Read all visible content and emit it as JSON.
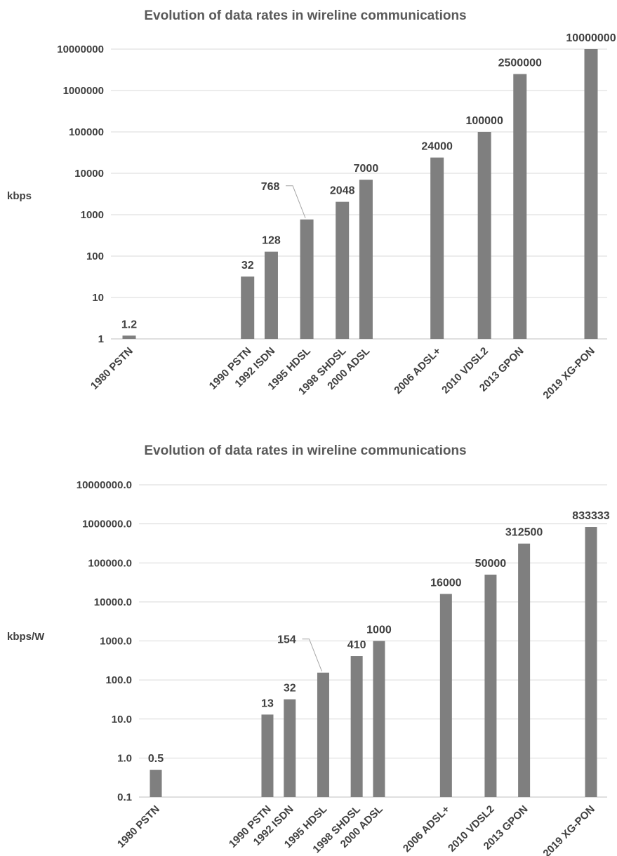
{
  "chart_data": [
    {
      "type": "bar",
      "title": "Evolution of data rates in wireline communications",
      "ylabel": "kbps",
      "xlabel": "",
      "yscale": "log",
      "ylim": [
        1,
        10000000
      ],
      "yticks": [
        "1",
        "10",
        "100",
        "1000",
        "10000",
        "100000",
        "1000000",
        "10000000"
      ],
      "categories": [
        "1980 PSTN",
        "1990 PSTN",
        "1992 ISDN",
        "1995 HDSL",
        "1998 SHDSL",
        "2000 ADSL",
        "2006 ADSL+",
        "2010 VDSL2",
        "2013 GPON",
        "2019 XG-PON"
      ],
      "years": [
        1980,
        1990,
        1992,
        1995,
        1998,
        2000,
        2006,
        2010,
        2013,
        2019
      ],
      "values": [
        1.2,
        32,
        128,
        768,
        2048,
        7000,
        24000,
        100000,
        2500000,
        10000000
      ],
      "data_labels": [
        "1.2",
        "32",
        "128",
        "768",
        "2048",
        "7000",
        "24000",
        "100000",
        "2500000",
        "10000000"
      ],
      "grid": true,
      "color": "#7f7f7f"
    },
    {
      "type": "bar",
      "title": "Evolution of data rates in wireline communications",
      "ylabel": "kbps/W",
      "xlabel": "",
      "yscale": "log",
      "ylim": [
        0.1,
        10000000
      ],
      "yticks": [
        "0.1",
        "1.0",
        "10.0",
        "100.0",
        "1000.0",
        "10000.0",
        "100000.0",
        "1000000.0",
        "10000000.0"
      ],
      "categories": [
        "1980 PSTN",
        "1990 PSTN",
        "1992 ISDN",
        "1995 HDSL",
        "1998 SHDSL",
        "2000 ADSL",
        "2006 ADSL+",
        "2010 VDSL2",
        "2013 GPON",
        "2019 XG-PON"
      ],
      "years": [
        1980,
        1990,
        1992,
        1995,
        1998,
        2000,
        2006,
        2010,
        2013,
        2019
      ],
      "values": [
        0.5,
        13,
        32,
        154,
        410,
        1000,
        16000,
        50000,
        312500,
        833333
      ],
      "data_labels": [
        "0.5",
        "13",
        "32",
        "154",
        "410",
        "1000",
        "16000",
        "50000",
        "312500",
        "833333"
      ],
      "grid": true,
      "color": "#7f7f7f"
    }
  ]
}
